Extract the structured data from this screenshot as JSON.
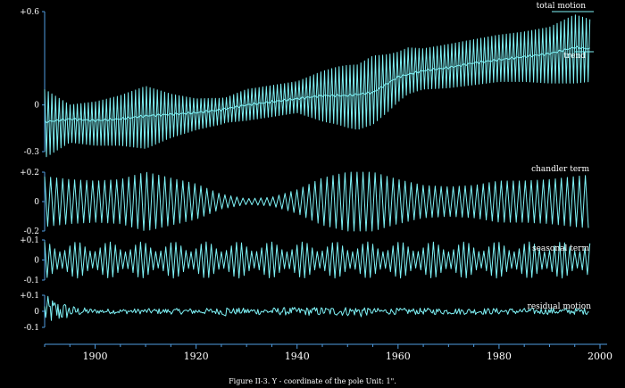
{
  "colors": {
    "background": "#000000",
    "trace": "#7ff3f7",
    "axis": "#4f9cdf",
    "text": "#ffffff"
  },
  "caption": "Figure II-3. Y - coordinate of the pole     Unit: 1\".",
  "chart_data": {
    "type": "line",
    "title": "",
    "xlabel": "",
    "x_ticks": [
      1900,
      1920,
      1940,
      1960,
      1980,
      2000
    ],
    "xlim": [
      1890,
      2000
    ],
    "panels": [
      {
        "id": "total",
        "y_ticks": [
          {
            "value": 0.6,
            "label": "+0.6"
          },
          {
            "value": 0,
            "label": "0"
          },
          {
            "value": -0.3,
            "label": "-0.3"
          }
        ],
        "ylim": [
          -0.3,
          0.6
        ],
        "series": [
          {
            "name": "total motion",
            "style": "oscillation",
            "period_years": 0.72,
            "center": [
              [
                1890,
                -0.12
              ],
              [
                1900,
                -0.12
              ],
              [
                1910,
                -0.08
              ],
              [
                1920,
                -0.06
              ],
              [
                1925,
                -0.04
              ],
              [
                1930,
                0.0
              ],
              [
                1940,
                0.05
              ],
              [
                1948,
                0.06
              ],
              [
                1952,
                0.05
              ],
              [
                1958,
                0.14
              ],
              [
                1962,
                0.22
              ],
              [
                1970,
                0.25
              ],
              [
                1980,
                0.3
              ],
              [
                1990,
                0.32
              ],
              [
                1995,
                0.36
              ],
              [
                1998,
                0.35
              ]
            ],
            "amplitude": [
              [
                1890,
                0.22
              ],
              [
                1892,
                0.18
              ],
              [
                1895,
                0.12
              ],
              [
                1900,
                0.14
              ],
              [
                1905,
                0.16
              ],
              [
                1910,
                0.2
              ],
              [
                1915,
                0.14
              ],
              [
                1920,
                0.1
              ],
              [
                1926,
                0.08
              ],
              [
                1930,
                0.1
              ],
              [
                1935,
                0.1
              ],
              [
                1940,
                0.1
              ],
              [
                1945,
                0.16
              ],
              [
                1950,
                0.2
              ],
              [
                1955,
                0.22
              ],
              [
                1960,
                0.16
              ],
              [
                1965,
                0.13
              ],
              [
                1970,
                0.14
              ],
              [
                1980,
                0.15
              ],
              [
                1985,
                0.16
              ],
              [
                1990,
                0.18
              ],
              [
                1995,
                0.22
              ],
              [
                1998,
                0.2
              ]
            ]
          },
          {
            "name": "trend",
            "style": "smooth",
            "values": [
              [
                1890,
                -0.11
              ],
              [
                1895,
                -0.09
              ],
              [
                1900,
                -0.1
              ],
              [
                1905,
                -0.09
              ],
              [
                1910,
                -0.07
              ],
              [
                1915,
                -0.06
              ],
              [
                1920,
                -0.05
              ],
              [
                1925,
                -0.03
              ],
              [
                1930,
                0.0
              ],
              [
                1935,
                0.02
              ],
              [
                1940,
                0.04
              ],
              [
                1945,
                0.06
              ],
              [
                1950,
                0.06
              ],
              [
                1955,
                0.08
              ],
              [
                1960,
                0.18
              ],
              [
                1965,
                0.22
              ],
              [
                1970,
                0.24
              ],
              [
                1975,
                0.27
              ],
              [
                1980,
                0.29
              ],
              [
                1985,
                0.31
              ],
              [
                1990,
                0.33
              ],
              [
                1995,
                0.37
              ],
              [
                1998,
                0.36
              ]
            ]
          }
        ]
      },
      {
        "id": "chandler",
        "y_ticks": [
          {
            "value": 0.2,
            "label": "+0.2"
          },
          {
            "value": 0,
            "label": "0"
          },
          {
            "value": -0.2,
            "label": "-0.2"
          }
        ],
        "ylim": [
          -0.2,
          0.2
        ],
        "series": [
          {
            "name": "chandler term",
            "style": "oscillation",
            "period_years": 1.19,
            "center": [
              [
                1890,
                0.0
              ],
              [
                1998,
                0.0
              ]
            ],
            "amplitude": [
              [
                1890,
                0.17
              ],
              [
                1895,
                0.15
              ],
              [
                1900,
                0.14
              ],
              [
                1905,
                0.15
              ],
              [
                1910,
                0.2
              ],
              [
                1915,
                0.16
              ],
              [
                1920,
                0.12
              ],
              [
                1925,
                0.05
              ],
              [
                1930,
                0.02
              ],
              [
                1935,
                0.03
              ],
              [
                1940,
                0.08
              ],
              [
                1945,
                0.16
              ],
              [
                1950,
                0.2
              ],
              [
                1955,
                0.2
              ],
              [
                1960,
                0.15
              ],
              [
                1965,
                0.11
              ],
              [
                1970,
                0.1
              ],
              [
                1975,
                0.11
              ],
              [
                1980,
                0.14
              ],
              [
                1985,
                0.14
              ],
              [
                1990,
                0.15
              ],
              [
                1995,
                0.17
              ],
              [
                1998,
                0.18
              ]
            ]
          }
        ]
      },
      {
        "id": "seasonal",
        "y_ticks": [
          {
            "value": 0.1,
            "label": "+0.1"
          },
          {
            "value": 0,
            "label": "0"
          },
          {
            "value": -0.1,
            "label": "-0.1"
          }
        ],
        "ylim": [
          -0.1,
          0.1
        ],
        "series": [
          {
            "name": "seasonal term",
            "style": "oscillation",
            "period_years": 1.0,
            "beat": {
              "period_years": 6.4,
              "depth": 0.55
            },
            "center": [
              [
                1890,
                0.0
              ],
              [
                1998,
                0.0
              ]
            ],
            "amplitude": [
              [
                1890,
                0.09
              ],
              [
                1998,
                0.09
              ]
            ]
          }
        ]
      },
      {
        "id": "residual",
        "y_ticks": [
          {
            "value": 0.1,
            "label": "+0.1"
          },
          {
            "value": 0,
            "label": "0"
          },
          {
            "value": -0.1,
            "label": "-0.1"
          }
        ],
        "ylim": [
          -0.1,
          0.1
        ],
        "series": [
          {
            "name": "residual motion",
            "style": "noise",
            "center": [
              [
                1890,
                0.0
              ],
              [
                1998,
                0.0
              ]
            ],
            "amplitude": [
              [
                1890,
                0.1
              ],
              [
                1893,
                0.07
              ],
              [
                1896,
                0.03
              ],
              [
                1900,
                0.015
              ],
              [
                1925,
                0.02
              ],
              [
                1926,
                0.04
              ],
              [
                1927,
                0.02
              ],
              [
                1952,
                0.03
              ],
              [
                1953,
                0.05
              ],
              [
                1954,
                0.02
              ],
              [
                1998,
                0.02
              ]
            ]
          }
        ]
      }
    ]
  }
}
